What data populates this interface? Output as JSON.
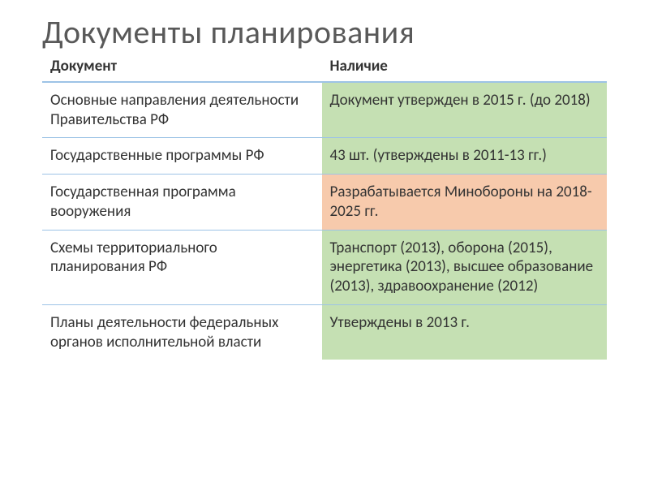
{
  "title": "Документы планирования",
  "table": {
    "columns": [
      "Документ",
      "Наличие"
    ],
    "col_widths": [
      "49.5%",
      "50.5%"
    ],
    "header_border_color": "#9dc3e6",
    "row_border_color": "#9dc3e6",
    "font_size": 19,
    "rows": [
      {
        "doc": "Основные направления деятельности Правительства РФ",
        "nal": "Документ утвержден в 2015 г. (до 2018)",
        "nal_bg": "#c5e0b3"
      },
      {
        "doc": "Государственные программы РФ",
        "nal": "43 шт.  (утверждены в 2011-13 гг.)",
        "nal_bg": "#c5e0b3"
      },
      {
        "doc": "Государственная программа вооружения",
        "nal": "Разрабатывается Минобороны на 2018-2025 гг.",
        "nal_bg": "#f7caac"
      },
      {
        "doc": "Схемы территориального планирования РФ",
        "nal": "Транспорт (2013), оборона (2015), энергетика (2013), высшее образование (2013), здравоохранение (2012)",
        "nal_bg": "#c5e0b3"
      },
      {
        "doc": "Планы деятельности федеральных органов исполнительной власти",
        "nal": "Утверждены в 2013 г.",
        "nal_bg": "#c5e0b3"
      }
    ]
  },
  "colors": {
    "title_color": "#595959",
    "background": "#ffffff",
    "green_fill": "#c5e0b3",
    "orange_fill": "#f7caac",
    "border_blue": "#9dc3e6"
  }
}
